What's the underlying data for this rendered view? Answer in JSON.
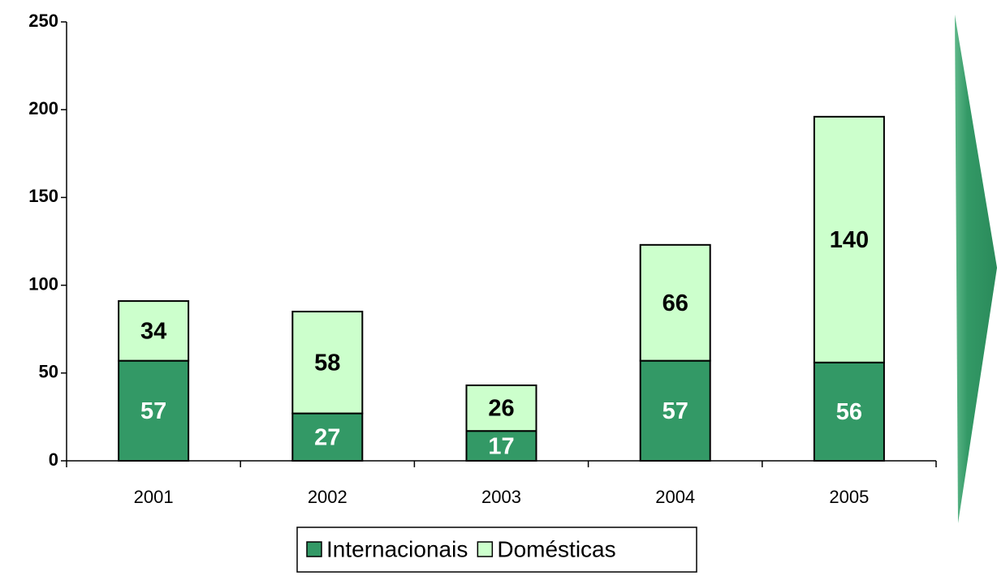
{
  "chart_data": {
    "type": "stacked_bar",
    "categories": [
      "2001",
      "2002",
      "2003",
      "2004",
      "2005"
    ],
    "series": [
      {
        "name": "Internacionais",
        "color": "#339966",
        "values": [
          57,
          27,
          17,
          57,
          56
        ]
      },
      {
        "name": "Domésticas",
        "color": "#ccffcc",
        "values": [
          34,
          58,
          26,
          66,
          140
        ]
      }
    ],
    "ylim": [
      0,
      250
    ],
    "yticks": [
      0,
      50,
      100,
      150,
      200,
      250
    ],
    "legend": "bottom"
  }
}
